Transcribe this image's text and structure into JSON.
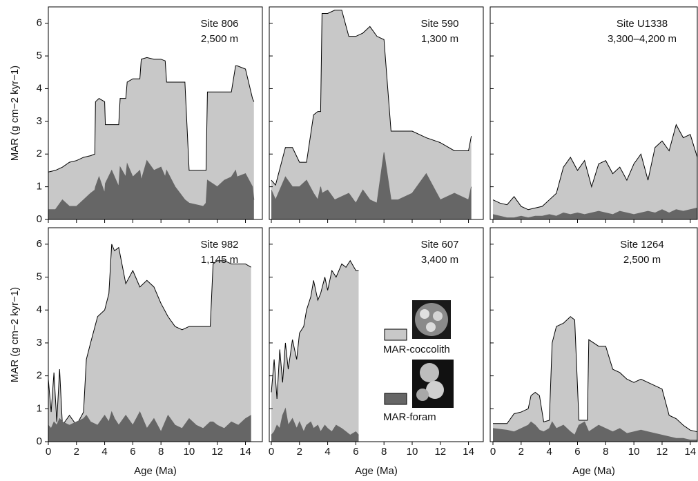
{
  "chart_data": [
    {
      "type": "area",
      "title": "Site 806",
      "subtitle": "2,500 m",
      "ylabel": "MAR (g cm−2 kyr−1)",
      "xlim": [
        0,
        15.2
      ],
      "ylim": [
        0,
        6.5
      ],
      "yticks": [
        0,
        1,
        2,
        3,
        4,
        5,
        6
      ],
      "x": [
        0,
        0.5,
        1,
        1.5,
        2,
        2.5,
        3,
        3.3,
        3.35,
        3.6,
        4,
        4.05,
        4.5,
        5,
        5.1,
        5.5,
        5.6,
        6,
        6.5,
        6.6,
        7,
        7.5,
        8,
        8.3,
        8.4,
        9,
        9.7,
        10,
        11,
        11.2,
        11.3,
        12,
        12.5,
        13,
        13.3,
        13.4,
        14,
        14.5,
        14.6
      ],
      "series": [
        {
          "name": "MAR-coccolith",
          "color": "#c8c8c8",
          "values": [
            1.45,
            1.5,
            1.6,
            1.75,
            1.8,
            1.9,
            1.95,
            2.0,
            3.6,
            3.7,
            3.6,
            2.9,
            2.9,
            2.9,
            3.7,
            3.7,
            4.2,
            4.3,
            4.3,
            4.9,
            4.95,
            4.9,
            4.9,
            4.85,
            4.2,
            4.2,
            4.2,
            1.5,
            1.5,
            1.5,
            3.9,
            3.9,
            3.9,
            3.9,
            4.7,
            4.7,
            4.6,
            3.7,
            3.6
          ]
        },
        {
          "name": "MAR-foram",
          "color": "#666666",
          "values": [
            0.3,
            0.3,
            0.6,
            0.4,
            0.4,
            0.6,
            0.8,
            0.9,
            1.0,
            1.3,
            0.8,
            1.1,
            1.5,
            1.0,
            1.6,
            1.3,
            1.7,
            1.3,
            1.5,
            1.2,
            1.8,
            1.5,
            1.6,
            1.3,
            1.5,
            1.0,
            0.6,
            0.5,
            0.4,
            0.5,
            1.2,
            1.0,
            1.2,
            1.3,
            1.5,
            1.3,
            1.4,
            1.0,
            0.6
          ]
        }
      ]
    },
    {
      "type": "area",
      "title": "Site 590",
      "subtitle": "1,300 m",
      "xlim": [
        0,
        15.05
      ],
      "ylim": [
        0,
        6.5
      ],
      "x": [
        0,
        0.3,
        1,
        1.5,
        2,
        2.5,
        3,
        3.3,
        3.5,
        3.6,
        4,
        4.5,
        5,
        5.5,
        6,
        6.5,
        7,
        7.5,
        8,
        8.5,
        9,
        10,
        11,
        12,
        13,
        14,
        14.2
      ],
      "series": [
        {
          "name": "MAR-coccolith",
          "color": "#c8c8c8",
          "values": [
            1.2,
            1.05,
            2.2,
            2.2,
            1.75,
            1.75,
            3.2,
            3.3,
            3.3,
            6.3,
            6.3,
            6.4,
            6.4,
            5.6,
            5.6,
            5.7,
            5.9,
            5.6,
            5.5,
            2.7,
            2.7,
            2.7,
            2.5,
            2.35,
            2.1,
            2.1,
            2.55
          ]
        },
        {
          "name": "MAR-foram",
          "color": "#666666",
          "values": [
            0.9,
            0.6,
            1.3,
            1.0,
            1.0,
            1.2,
            0.8,
            0.6,
            1.0,
            0.8,
            0.9,
            0.6,
            0.7,
            0.8,
            0.5,
            0.9,
            0.6,
            0.5,
            2.05,
            0.6,
            0.6,
            0.8,
            1.4,
            0.6,
            0.8,
            0.6,
            1.0
          ]
        }
      ]
    },
    {
      "type": "area",
      "title": "Site U1338",
      "subtitle": "3,300–4,200 m",
      "xlim": [
        0,
        14.5
      ],
      "ylim": [
        0,
        6.5
      ],
      "x": [
        0,
        0.5,
        1,
        1.5,
        2,
        2.5,
        3,
        3.5,
        4,
        4.5,
        5,
        5.5,
        6,
        6.5,
        7,
        7.5,
        8,
        8.5,
        9,
        9.5,
        10,
        10.5,
        11,
        11.5,
        12,
        12.5,
        13,
        13.5,
        14,
        14.5
      ],
      "series": [
        {
          "name": "MAR-coccolith",
          "color": "#c8c8c8",
          "values": [
            0.6,
            0.5,
            0.45,
            0.7,
            0.4,
            0.3,
            0.35,
            0.4,
            0.6,
            0.8,
            1.6,
            1.9,
            1.5,
            1.8,
            1.0,
            1.7,
            1.8,
            1.4,
            1.6,
            1.2,
            1.7,
            2.0,
            1.2,
            2.2,
            2.4,
            2.1,
            2.9,
            2.5,
            2.6,
            1.9
          ]
        },
        {
          "name": "MAR-foram",
          "color": "#666666",
          "values": [
            0.15,
            0.1,
            0.05,
            0.05,
            0.1,
            0.05,
            0.1,
            0.1,
            0.15,
            0.1,
            0.2,
            0.15,
            0.2,
            0.15,
            0.2,
            0.25,
            0.2,
            0.15,
            0.25,
            0.2,
            0.15,
            0.2,
            0.25,
            0.2,
            0.3,
            0.2,
            0.3,
            0.25,
            0.3,
            0.35
          ]
        }
      ]
    },
    {
      "type": "area",
      "title": "Site 982",
      "subtitle": "1,145 m",
      "ylabel": "MAR (g cm−2 kyr−1)",
      "xlabel": "Age (Ma)",
      "xlim": [
        0,
        15.2
      ],
      "ylim": [
        0,
        6.5
      ],
      "yticks": [
        0,
        1,
        2,
        3,
        4,
        5,
        6
      ],
      "xticks": [
        0,
        2,
        4,
        6,
        8,
        10,
        12,
        14
      ],
      "x": [
        0,
        0.2,
        0.4,
        0.6,
        0.8,
        1,
        1.5,
        2,
        2.5,
        2.7,
        3,
        3.5,
        4,
        4.3,
        4.5,
        4.7,
        5,
        5.5,
        6,
        6.5,
        7,
        7.5,
        8,
        8.5,
        9,
        9.5,
        10,
        10.5,
        11,
        11.5,
        11.7,
        12,
        12.5,
        13,
        13.5,
        14,
        14.4
      ],
      "series": [
        {
          "name": "MAR-coccolith",
          "color": "#c8c8c8",
          "values": [
            1.9,
            0.9,
            2.1,
            0.6,
            2.2,
            0.5,
            0.8,
            0.5,
            0.9,
            2.5,
            3.0,
            3.8,
            4.0,
            4.5,
            6.0,
            5.8,
            5.9,
            4.8,
            5.2,
            4.7,
            4.9,
            4.7,
            4.2,
            3.8,
            3.5,
            3.4,
            3.5,
            3.5,
            3.5,
            3.5,
            5.4,
            5.5,
            5.5,
            5.4,
            5.4,
            5.4,
            5.3
          ]
        },
        {
          "name": "MAR-foram",
          "color": "#666666",
          "values": [
            0.5,
            0.4,
            0.6,
            0.5,
            0.7,
            0.6,
            0.5,
            0.6,
            0.7,
            0.8,
            0.6,
            0.5,
            0.8,
            0.6,
            0.9,
            0.7,
            0.5,
            0.8,
            0.5,
            0.9,
            0.4,
            0.7,
            0.3,
            0.8,
            0.5,
            0.4,
            0.7,
            0.5,
            0.4,
            0.6,
            0.6,
            0.5,
            0.4,
            0.6,
            0.5,
            0.7,
            0.8
          ]
        }
      ]
    },
    {
      "type": "area",
      "title": "Site 607",
      "subtitle": "3,400 m",
      "xlabel": "Age (Ma)",
      "xlim": [
        0,
        15.05
      ],
      "ylim": [
        0,
        6.5
      ],
      "xticks": [
        0,
        2,
        4,
        6,
        8,
        10,
        12,
        14
      ],
      "x": [
        0,
        0.2,
        0.4,
        0.6,
        0.8,
        1,
        1.2,
        1.5,
        1.8,
        2,
        2.3,
        2.5,
        2.8,
        3,
        3.3,
        3.5,
        3.8,
        4,
        4.3,
        4.6,
        5,
        5.3,
        5.6,
        6,
        6.2
      ],
      "series": [
        {
          "name": "MAR-coccolith",
          "color": "#c8c8c8",
          "values": [
            1.5,
            2.5,
            1.3,
            2.8,
            1.8,
            3.0,
            2.2,
            3.1,
            2.5,
            3.3,
            3.5,
            4.0,
            4.4,
            4.9,
            4.3,
            4.5,
            5.0,
            4.6,
            5.2,
            5.0,
            5.4,
            5.3,
            5.5,
            5.2,
            5.2
          ]
        },
        {
          "name": "MAR-foram",
          "color": "#666666",
          "values": [
            0.2,
            0.3,
            0.5,
            0.4,
            0.8,
            1.0,
            0.5,
            0.7,
            0.4,
            0.6,
            0.3,
            0.5,
            0.6,
            0.4,
            0.5,
            0.3,
            0.5,
            0.4,
            0.3,
            0.5,
            0.4,
            0.3,
            0.2,
            0.3,
            0.2
          ]
        }
      ]
    },
    {
      "type": "area",
      "title": "Site 1264",
      "subtitle": "2,500 m",
      "xlabel": "Age (Ma)",
      "xlim": [
        0,
        14.5
      ],
      "ylim": [
        0,
        6.5
      ],
      "xticks": [
        0,
        2,
        4,
        6,
        8,
        10,
        12,
        14
      ],
      "x": [
        0,
        1,
        1.5,
        2,
        2.5,
        2.7,
        3,
        3.3,
        3.6,
        4,
        4.2,
        4.5,
        5,
        5.5,
        5.8,
        6.1,
        6.5,
        6.7,
        6.8,
        7.5,
        8,
        8.5,
        9,
        9.5,
        10,
        10.5,
        11,
        11.5,
        12,
        12.5,
        13,
        13.5,
        14,
        14.5
      ],
      "series": [
        {
          "name": "MAR-coccolith",
          "color": "#c8c8c8",
          "values": [
            0.55,
            0.55,
            0.85,
            0.9,
            1.0,
            1.4,
            1.5,
            1.4,
            0.6,
            0.65,
            3.0,
            3.5,
            3.6,
            3.8,
            3.7,
            0.65,
            0.65,
            0.65,
            3.1,
            2.9,
            2.9,
            2.2,
            2.1,
            1.9,
            1.8,
            1.9,
            1.8,
            1.7,
            1.6,
            0.8,
            0.7,
            0.5,
            0.35,
            0.3
          ]
        },
        {
          "name": "MAR-foram",
          "color": "#666666",
          "values": [
            0.4,
            0.35,
            0.3,
            0.4,
            0.5,
            0.6,
            0.5,
            0.35,
            0.3,
            0.4,
            0.6,
            0.4,
            0.5,
            0.3,
            0.2,
            0.5,
            0.6,
            0.4,
            0.3,
            0.5,
            0.4,
            0.3,
            0.4,
            0.25,
            0.3,
            0.35,
            0.3,
            0.25,
            0.2,
            0.15,
            0.1,
            0.1,
            0.05,
            0.05
          ]
        }
      ]
    }
  ]
}
